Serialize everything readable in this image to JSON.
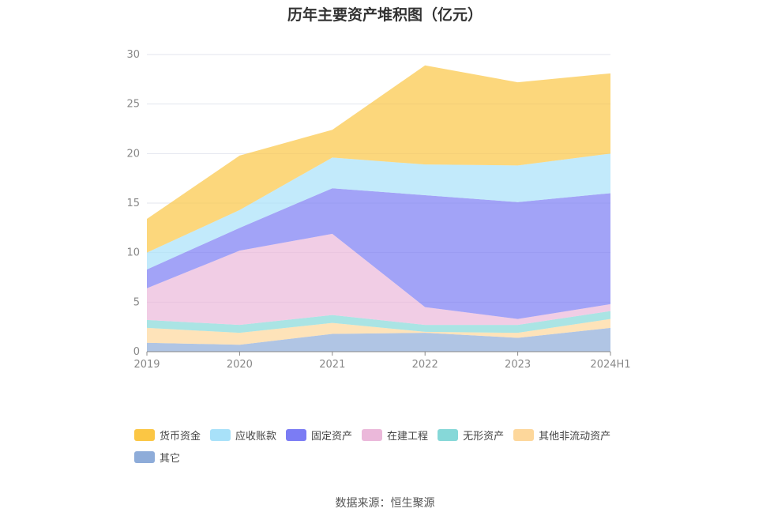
{
  "chart_data": {
    "type": "area",
    "stacked": true,
    "title": "历年主要资产堆积图（亿元）",
    "categories": [
      "2019",
      "2020",
      "2021",
      "2022",
      "2023",
      "2024H1"
    ],
    "ylim": [
      0,
      30
    ],
    "yticks": [
      0,
      5,
      10,
      15,
      20,
      25,
      30
    ],
    "grid": true,
    "legend_position": "bottom",
    "series": [
      {
        "name": "其它",
        "color": "#8eacd9",
        "values": [
          0.9,
          0.7,
          1.8,
          1.9,
          1.4,
          2.4
        ]
      },
      {
        "name": "其他非流动资产",
        "color": "#fdd79b",
        "values": [
          1.5,
          1.2,
          1.1,
          0.1,
          0.5,
          0.9
        ]
      },
      {
        "name": "无形资产",
        "color": "#86d8d8",
        "values": [
          0.8,
          0.8,
          0.8,
          0.7,
          0.8,
          0.8
        ]
      },
      {
        "name": "在建工程",
        "color": "#ebb8da",
        "values": [
          3.2,
          7.5,
          8.2,
          1.8,
          0.6,
          0.7
        ]
      },
      {
        "name": "固定资产",
        "color": "#7b7cf4",
        "values": [
          1.9,
          2.3,
          4.6,
          11.3,
          11.8,
          11.2
        ]
      },
      {
        "name": "应收账款",
        "color": "#a8e1f9",
        "values": [
          1.7,
          1.8,
          3.1,
          3.1,
          3.7,
          4.0
        ]
      },
      {
        "name": "货币资金",
        "color": "#fbc644",
        "values": [
          3.4,
          5.5,
          2.8,
          10.0,
          8.4,
          8.1
        ]
      }
    ],
    "legend_order": [
      "货币资金",
      "应收账款",
      "固定资产",
      "在建工程",
      "无形资产",
      "其他非流动资产",
      "其它"
    ]
  },
  "source": "数据来源：恒生聚源"
}
